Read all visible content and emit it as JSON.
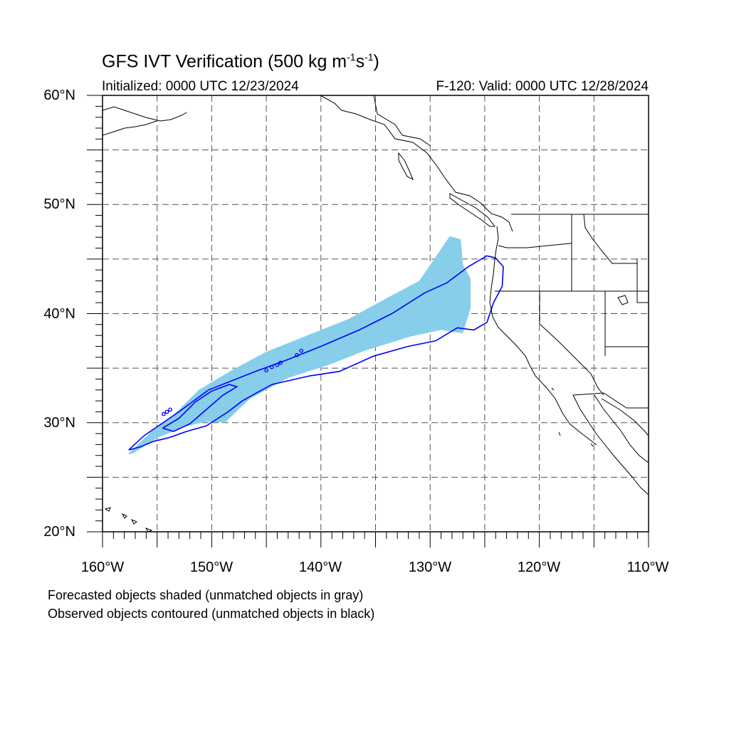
{
  "header": {
    "title_main": "GFS IVT Verification (500 kg m",
    "title_exp1": "-1",
    "title_mid": "s",
    "title_exp2": "-1",
    "title_end": ")",
    "initialized": "Initialized: 0000 UTC 12/23/2024",
    "valid": "F-120: Valid: 0000 UTC 12/28/2024"
  },
  "axes": {
    "lon_range": [
      -160,
      -110
    ],
    "lat_range": [
      20,
      60
    ],
    "y_labels": [
      "60°N",
      "50°N",
      "40°N",
      "30°N",
      "20°N"
    ],
    "x_labels": [
      "160°W",
      "150°W",
      "140°W",
      "130°W",
      "120°W",
      "110°W"
    ],
    "grid": "dashed every 5 degrees"
  },
  "legend": {
    "line1": "Forecasted objects shaded (unmatched objects in gray)",
    "line2": "Observed objects contoured (unmatched objects in black)"
  },
  "colors": {
    "forecast_fill": "#87ceeb",
    "observed_contour": "#0000ff",
    "coastline": "#000000",
    "grid": "#000000"
  },
  "map_data": {
    "forecast_object": [
      [
        -157.7,
        27.1
      ],
      [
        -155.5,
        29.2
      ],
      [
        -153.5,
        30.7
      ],
      [
        -151.2,
        33.0
      ],
      [
        -148.0,
        34.9
      ],
      [
        -145.0,
        36.5
      ],
      [
        -142.0,
        37.7
      ],
      [
        -137.5,
        39.5
      ],
      [
        -134.0,
        41.4
      ],
      [
        -131.0,
        43.0
      ],
      [
        -129.5,
        45.2
      ],
      [
        -128.2,
        47.1
      ],
      [
        -127.2,
        46.8
      ],
      [
        -127.0,
        44.5
      ],
      [
        -126.3,
        43.2
      ],
      [
        -126.3,
        40.5
      ],
      [
        -127.0,
        38.2
      ],
      [
        -129.0,
        38.5
      ],
      [
        -131.8,
        37.9
      ],
      [
        -136.0,
        36.6
      ],
      [
        -139.0,
        35.4
      ],
      [
        -143.0,
        34.1
      ],
      [
        -146.5,
        32.2
      ],
      [
        -148.8,
        30.0
      ],
      [
        -150.5,
        30.1
      ],
      [
        -152.6,
        29.6
      ],
      [
        -155.0,
        28.6
      ],
      [
        -157.2,
        27.2
      ]
    ],
    "observed_contour": [
      [
        -157.6,
        27.5
      ],
      [
        -156.2,
        28.8
      ],
      [
        -153.0,
        31.0
      ],
      [
        -150.3,
        33.0
      ],
      [
        -146.0,
        34.7
      ],
      [
        -143.0,
        35.8
      ],
      [
        -140.0,
        37.0
      ],
      [
        -136.5,
        38.5
      ],
      [
        -133.5,
        40.0
      ],
      [
        -130.5,
        41.9
      ],
      [
        -128.5,
        42.8
      ],
      [
        -126.5,
        44.3
      ],
      [
        -124.8,
        45.3
      ],
      [
        -124.0,
        45.1
      ],
      [
        -123.3,
        44.3
      ],
      [
        -123.4,
        42.5
      ],
      [
        -124.2,
        41.0
      ],
      [
        -124.8,
        39.2
      ],
      [
        -126.0,
        38.5
      ],
      [
        -127.5,
        38.7
      ],
      [
        -129.5,
        37.5
      ],
      [
        -132.0,
        37.0
      ],
      [
        -135.2,
        36.1
      ],
      [
        -138.3,
        34.7
      ],
      [
        -141.0,
        34.3
      ],
      [
        -144.5,
        33.5
      ],
      [
        -147.2,
        32.0
      ],
      [
        -148.5,
        31.0
      ],
      [
        -150.5,
        29.7
      ],
      [
        -152.3,
        29.2
      ],
      [
        -154.0,
        28.6
      ],
      [
        -155.3,
        28.3
      ],
      [
        -156.5,
        27.8
      ],
      [
        -157.6,
        27.5
      ]
    ],
    "observed_inner_contour": [
      [
        -154.5,
        29.5
      ],
      [
        -153.0,
        30.4
      ],
      [
        -151.5,
        31.9
      ],
      [
        -150.0,
        32.9
      ],
      [
        -148.4,
        33.5
      ],
      [
        -147.7,
        33.3
      ],
      [
        -149.0,
        32.5
      ],
      [
        -150.5,
        31.2
      ],
      [
        -152.0,
        29.9
      ],
      [
        -153.5,
        29.2
      ],
      [
        -154.5,
        29.5
      ]
    ],
    "observed_small_contours": [
      [
        -154.4,
        30.8
      ],
      [
        -154.1,
        31.0
      ],
      [
        -153.8,
        31.2
      ],
      [
        -145.0,
        34.8
      ],
      [
        -144.5,
        35.1
      ],
      [
        -144.0,
        35.3
      ],
      [
        -143.7,
        35.5
      ],
      [
        -142.2,
        36.2
      ],
      [
        -141.8,
        36.6
      ]
    ]
  }
}
